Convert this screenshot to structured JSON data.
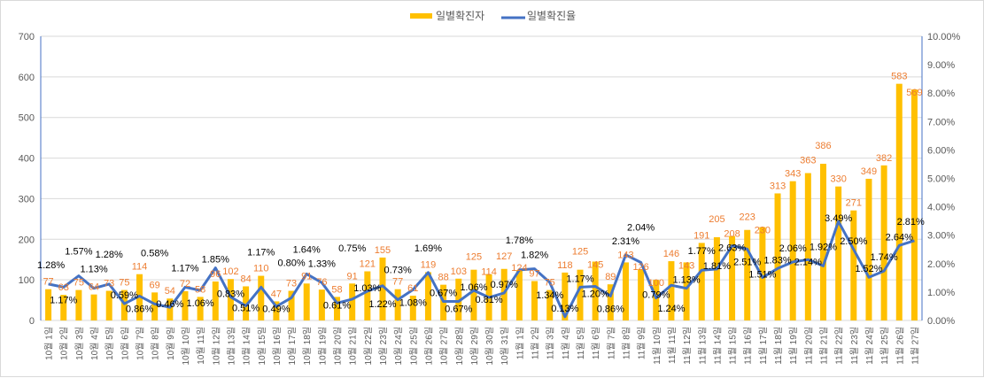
{
  "chart_data": {
    "type": "bar+line",
    "legend": [
      "일별확진자",
      "일별확진율"
    ],
    "legend_position": "top",
    "categories": [
      "10월 1일",
      "10월 2일",
      "10월 3일",
      "10월 4일",
      "10월 5일",
      "10월 6일",
      "10월 7일",
      "10월 8일",
      "10월 9일",
      "10월 10일",
      "10월 11일",
      "10월 12일",
      "10월 13일",
      "10월 14일",
      "10월 15일",
      "10월 16일",
      "10월 17일",
      "10월 18일",
      "10월 19일",
      "10월 20일",
      "10월 21일",
      "10월 22일",
      "10월 23일",
      "10월 24일",
      "10월 25일",
      "10월 26일",
      "10월 27일",
      "10월 28일",
      "10월 29일",
      "10월 30일",
      "10월 31일",
      "11월 1일",
      "11월 2일",
      "11월 3일",
      "11월 4일",
      "11월 5일",
      "11월 6일",
      "11월 7일",
      "11월 8일",
      "11월 9일",
      "11월 10일",
      "11월 11일",
      "11월 12일",
      "11월 13일",
      "11월 14일",
      "11월 15일",
      "11월 16일",
      "11월 17일",
      "11월 18일",
      "11월 19일",
      "11월 20일",
      "11월 21일",
      "11월 22일",
      "11월 23일",
      "11월 24일",
      "11월 25일",
      "11월 26일",
      "11월 27일"
    ],
    "series": [
      {
        "name": "일별확진자",
        "type": "bar",
        "axis": "left",
        "color": "#ffc000",
        "label_color": "#ed7d31",
        "values": [
          77,
          63,
          75,
          64,
          73,
          75,
          114,
          69,
          54,
          72,
          58,
          96,
          102,
          84,
          110,
          47,
          73,
          91,
          76,
          58,
          91,
          121,
          155,
          77,
          61,
          119,
          88,
          103,
          125,
          114,
          127,
          124,
          97,
          75,
          118,
          125,
          145,
          89,
          143,
          126,
          100,
          146,
          143,
          191,
          205,
          208,
          223,
          230,
          313,
          343,
          363,
          386,
          330,
          271,
          349,
          382,
          583,
          569
        ]
      },
      {
        "name": "일별확진율",
        "type": "line",
        "axis": "right",
        "color": "#4472c4",
        "values": [
          1.28,
          1.17,
          1.57,
          1.13,
          1.28,
          0.59,
          0.86,
          0.58,
          0.46,
          1.17,
          1.06,
          1.85,
          0.83,
          0.51,
          1.17,
          0.49,
          0.8,
          1.64,
          1.33,
          0.61,
          0.75,
          1.03,
          1.22,
          0.73,
          1.08,
          1.69,
          0.67,
          0.67,
          1.06,
          0.81,
          0.97,
          1.78,
          1.82,
          1.34,
          0.13,
          1.17,
          1.2,
          0.86,
          2.31,
          2.04,
          0.79,
          1.24,
          1.13,
          1.77,
          1.81,
          2.63,
          2.51,
          1.51,
          1.83,
          2.06,
          2.14,
          1.92,
          3.49,
          2.5,
          1.52,
          1.74,
          2.64,
          2.81
        ]
      }
    ],
    "y_left": {
      "min": 0,
      "max": 700,
      "ticks": [
        "0",
        "100",
        "200",
        "300",
        "400",
        "500",
        "600",
        "700"
      ]
    },
    "y_right": {
      "min": 0,
      "max": 10,
      "ticks": [
        "0.00%",
        "1.00%",
        "2.00%",
        "3.00%",
        "4.00%",
        "5.00%",
        "6.00%",
        "7.00%",
        "8.00%",
        "9.00%",
        "10.00%"
      ]
    },
    "grid": true
  }
}
